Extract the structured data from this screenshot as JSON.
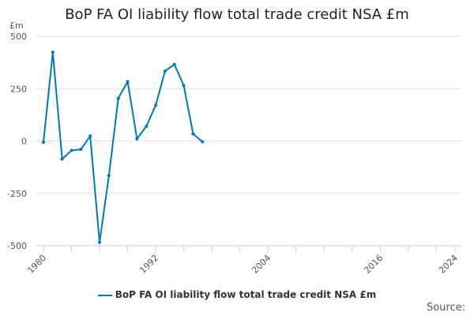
{
  "chart_data": {
    "type": "line",
    "title": "BoP FA OI liability flow total trade credit NSA £m",
    "ylabel": "£m",
    "xlabel": "",
    "ylim": [
      -500,
      500
    ],
    "xlim": [
      1980,
      2024
    ],
    "yticks": [
      500,
      250,
      0,
      -250,
      -500
    ],
    "xticks": [
      1980,
      1992,
      2004,
      2016,
      2024
    ],
    "grid": true,
    "legend_position": "bottom",
    "color": "#0077bb",
    "series": [
      {
        "name": "BoP FA OI liability flow total trade credit NSA £m",
        "x": [
          1980,
          1981,
          1982,
          1983,
          1984,
          1985,
          1986,
          1987,
          1988,
          1989,
          1990,
          1991,
          1992,
          1993,
          1994,
          1995,
          1996,
          1997
        ],
        "values": [
          -6,
          424,
          -86,
          -45,
          -40,
          24,
          -484,
          -165,
          204,
          284,
          10,
          70,
          171,
          334,
          366,
          265,
          34,
          -4
        ]
      }
    ]
  },
  "source_label": "Source:"
}
